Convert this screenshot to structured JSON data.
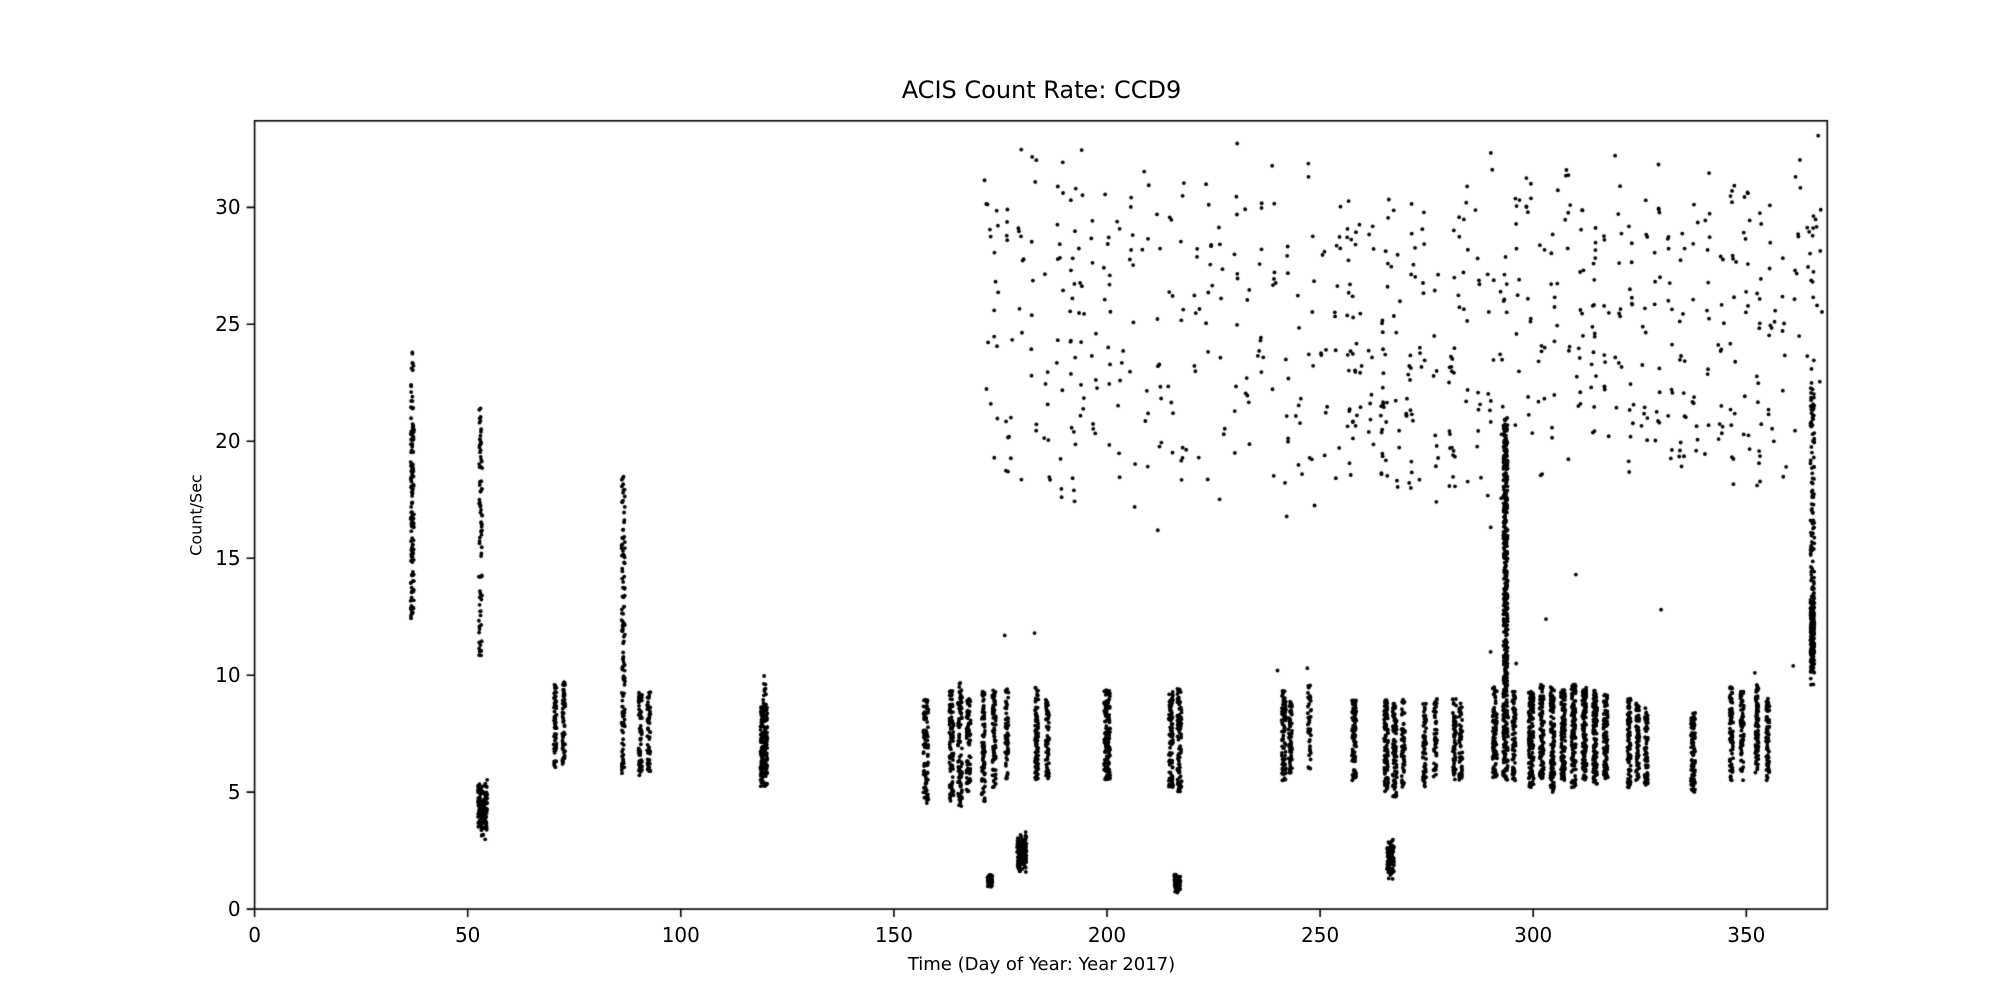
{
  "chart_data": {
    "type": "scatter",
    "title": "ACIS Count Rate: CCD9",
    "xlabel": "Time (Day of Year: Year 2017)",
    "ylabel": "Count/Sec",
    "xlim": [
      0,
      369
    ],
    "ylim": [
      0,
      33.7
    ],
    "xticks": [
      0,
      50,
      100,
      150,
      200,
      250,
      300,
      350
    ],
    "yticks": [
      0,
      5,
      10,
      15,
      20,
      25,
      30
    ],
    "grid": false,
    "legend": "none",
    "background": "#ffffff",
    "axis_color": "#000000",
    "marker_color": "#000000",
    "marker_radius": 1.9,
    "cluster_fields": "[x_center_day, x_spread_days, y_min, y_max, n_points, mode(0=uniform,1=center_weighted)]",
    "clusters": [
      [
        37,
        0.8,
        12.4,
        21.5,
        130,
        0
      ],
      [
        37,
        0.6,
        21.5,
        23.8,
        12,
        0
      ],
      [
        53,
        0.8,
        10.5,
        21.4,
        80,
        0
      ],
      [
        53.5,
        2.2,
        2.9,
        5.6,
        150,
        1
      ],
      [
        70.5,
        0.7,
        6.0,
        9.6,
        60,
        0
      ],
      [
        72.5,
        0.7,
        6.2,
        9.7,
        60,
        0
      ],
      [
        86.5,
        0.8,
        5.5,
        18.5,
        120,
        0
      ],
      [
        90.5,
        0.8,
        5.6,
        9.3,
        70,
        0
      ],
      [
        92.5,
        0.8,
        5.8,
        9.3,
        55,
        0
      ],
      [
        119.5,
        1.6,
        5.2,
        8.7,
        170,
        0
      ],
      [
        119.5,
        1.0,
        8.7,
        10.0,
        12,
        0
      ],
      [
        157.5,
        1.2,
        4.5,
        9.0,
        90,
        0
      ],
      [
        163.5,
        1.0,
        4.6,
        9.4,
        90,
        0
      ],
      [
        165.5,
        1.0,
        4.4,
        9.7,
        90,
        0
      ],
      [
        167.5,
        1.0,
        5.0,
        9.0,
        70,
        0
      ],
      [
        171.0,
        0.8,
        4.6,
        9.4,
        80,
        0
      ],
      [
        173.5,
        0.8,
        5.0,
        9.5,
        80,
        0
      ],
      [
        172.5,
        1.2,
        0.9,
        1.6,
        50,
        1
      ],
      [
        176.5,
        0.8,
        5.5,
        9.5,
        55,
        0
      ],
      [
        180.0,
        2.2,
        1.5,
        3.3,
        160,
        1
      ],
      [
        183.5,
        0.8,
        5.5,
        9.5,
        90,
        0
      ],
      [
        186.0,
        0.8,
        5.5,
        9.0,
        60,
        0
      ],
      [
        200.0,
        1.4,
        5.5,
        9.4,
        140,
        0
      ],
      [
        215.0,
        1.0,
        5.2,
        9.3,
        90,
        0
      ],
      [
        217.0,
        1.0,
        5.0,
        9.5,
        90,
        0
      ],
      [
        216.5,
        1.4,
        0.6,
        1.5,
        70,
        1
      ],
      [
        241.5,
        1.0,
        5.5,
        9.4,
        80,
        0
      ],
      [
        243.0,
        0.8,
        5.8,
        9.0,
        60,
        0
      ],
      [
        247.5,
        0.8,
        6.0,
        9.6,
        40,
        0
      ],
      [
        258.0,
        1.0,
        5.5,
        9.0,
        90,
        0
      ],
      [
        265.5,
        1.0,
        5.0,
        9.0,
        90,
        0
      ],
      [
        267.5,
        1.0,
        4.8,
        8.8,
        80,
        0
      ],
      [
        269.5,
        0.8,
        5.2,
        9.0,
        60,
        0
      ],
      [
        266.5,
        1.6,
        1.2,
        3.1,
        110,
        1
      ],
      [
        274.5,
        0.8,
        5.2,
        8.8,
        60,
        0
      ],
      [
        277.0,
        0.8,
        5.5,
        9.0,
        50,
        0
      ],
      [
        281.5,
        0.8,
        5.5,
        9.0,
        60,
        0
      ],
      [
        283.0,
        0.8,
        5.5,
        8.8,
        50,
        0
      ],
      [
        291.0,
        1.0,
        5.5,
        9.5,
        100,
        0
      ],
      [
        293.5,
        1.0,
        9.5,
        21.0,
        340,
        0
      ],
      [
        293.5,
        1.2,
        5.5,
        9.5,
        120,
        0
      ],
      [
        295.5,
        0.8,
        5.5,
        9.3,
        80,
        0
      ],
      [
        299.5,
        1.2,
        5.2,
        9.3,
        130,
        0
      ],
      [
        302.0,
        1.0,
        5.5,
        9.6,
        110,
        0
      ],
      [
        304.5,
        1.0,
        5.0,
        9.5,
        120,
        0
      ],
      [
        307.0,
        1.0,
        5.5,
        9.4,
        120,
        0
      ],
      [
        309.5,
        1.0,
        5.2,
        9.6,
        130,
        0
      ],
      [
        312.0,
        1.0,
        5.5,
        9.5,
        120,
        0
      ],
      [
        314.5,
        1.0,
        5.3,
        9.4,
        120,
        0
      ],
      [
        317.0,
        1.0,
        5.5,
        9.2,
        100,
        0
      ],
      [
        322.5,
        0.8,
        5.2,
        9.0,
        80,
        0
      ],
      [
        324.5,
        0.8,
        5.5,
        8.8,
        70,
        0
      ],
      [
        326.5,
        0.8,
        5.3,
        8.6,
        60,
        0
      ],
      [
        337.5,
        1.0,
        5.0,
        8.5,
        90,
        0
      ],
      [
        346.5,
        0.8,
        5.5,
        9.5,
        80,
        0
      ],
      [
        349.0,
        0.8,
        5.5,
        9.3,
        70,
        0
      ],
      [
        352.5,
        0.8,
        5.8,
        9.6,
        80,
        0
      ],
      [
        355.0,
        0.8,
        5.5,
        9.0,
        70,
        0
      ],
      [
        365.5,
        0.9,
        9.5,
        23.5,
        140,
        0
      ],
      [
        365.5,
        0.9,
        10.0,
        13.5,
        150,
        1
      ]
    ],
    "high_column_fields": "[x_center_day, n_points, y_min, y_max]",
    "high_columns": [
      [
        172,
        8,
        21,
        31.5
      ],
      [
        174,
        10,
        19,
        32
      ],
      [
        177,
        12,
        18,
        31
      ],
      [
        180,
        9,
        17,
        32.5
      ],
      [
        183,
        10,
        20,
        33
      ],
      [
        186,
        8,
        18,
        30
      ],
      [
        189,
        14,
        17,
        33.2
      ],
      [
        192,
        18,
        17,
        33.4
      ],
      [
        194,
        12,
        20,
        33
      ],
      [
        197,
        10,
        18,
        31
      ],
      [
        200,
        12,
        19,
        32
      ],
      [
        203,
        8,
        18,
        30
      ],
      [
        206,
        10,
        17,
        31.5
      ],
      [
        209,
        8,
        18,
        33
      ],
      [
        212,
        10,
        15.5,
        30
      ],
      [
        215,
        8,
        18,
        31
      ],
      [
        218,
        10,
        17,
        32
      ],
      [
        221,
        8,
        19,
        30
      ],
      [
        224,
        10,
        18,
        31
      ],
      [
        227,
        8,
        17,
        32.2
      ],
      [
        230,
        10,
        19,
        33
      ],
      [
        233,
        8,
        18,
        30
      ],
      [
        236,
        10,
        17,
        31
      ],
      [
        239,
        8,
        18,
        32
      ],
      [
        242,
        10,
        16,
        30
      ],
      [
        245,
        8,
        18,
        31
      ],
      [
        248,
        10,
        17,
        32
      ],
      [
        251,
        8,
        19,
        30
      ],
      [
        254,
        10,
        18,
        31
      ],
      [
        257,
        22,
        18,
        32
      ],
      [
        259,
        12,
        19,
        31
      ],
      [
        262,
        10,
        18,
        30
      ],
      [
        265,
        22,
        18.5,
        25.5
      ],
      [
        266,
        6,
        26,
        31
      ],
      [
        268,
        10,
        18,
        30
      ],
      [
        271,
        16,
        18,
        24
      ],
      [
        272,
        6,
        25,
        31
      ],
      [
        274,
        10,
        18,
        30
      ],
      [
        277,
        10,
        17,
        31
      ],
      [
        281,
        18,
        18,
        24
      ],
      [
        282,
        6,
        25,
        30.5
      ],
      [
        284,
        10,
        18,
        31
      ],
      [
        287,
        10,
        17,
        30
      ],
      [
        290,
        12,
        16,
        33.3
      ],
      [
        293,
        20,
        16,
        28
      ],
      [
        296,
        10,
        18,
        31
      ],
      [
        299,
        12,
        20,
        32
      ],
      [
        302,
        10,
        18,
        30
      ],
      [
        305,
        12,
        19,
        31
      ],
      [
        308,
        10,
        18,
        32
      ],
      [
        311,
        14,
        19,
        30
      ],
      [
        314,
        18,
        20,
        30
      ],
      [
        317,
        10,
        18,
        31
      ],
      [
        320,
        12,
        19,
        32.5
      ],
      [
        323,
        14,
        18,
        30
      ],
      [
        326,
        12,
        19,
        31
      ],
      [
        329,
        14,
        18,
        33
      ],
      [
        332,
        12,
        19,
        30
      ],
      [
        335,
        16,
        18.5,
        29.5
      ],
      [
        338,
        10,
        17,
        31
      ],
      [
        341,
        12,
        18,
        32
      ],
      [
        344,
        12,
        19,
        30
      ],
      [
        347,
        16,
        18,
        31
      ],
      [
        350,
        14,
        19,
        32
      ],
      [
        353,
        16,
        18,
        30
      ],
      [
        356,
        12,
        19,
        31.5
      ],
      [
        359,
        8,
        18,
        30
      ],
      [
        362,
        10,
        20,
        33
      ],
      [
        365,
        14,
        21,
        31
      ],
      [
        367,
        8,
        22,
        33.4
      ]
    ],
    "points": [
      [
        176,
        11.7
      ],
      [
        183,
        11.8
      ],
      [
        240,
        10.2
      ],
      [
        247,
        10.3
      ],
      [
        290,
        11.0
      ],
      [
        296,
        10.5
      ],
      [
        303,
        12.4
      ],
      [
        310,
        14.3
      ],
      [
        330,
        12.8
      ],
      [
        352,
        10.1
      ],
      [
        361,
        10.4
      ],
      [
        37,
        23.8
      ],
      [
        53,
        21.4
      ]
    ]
  }
}
